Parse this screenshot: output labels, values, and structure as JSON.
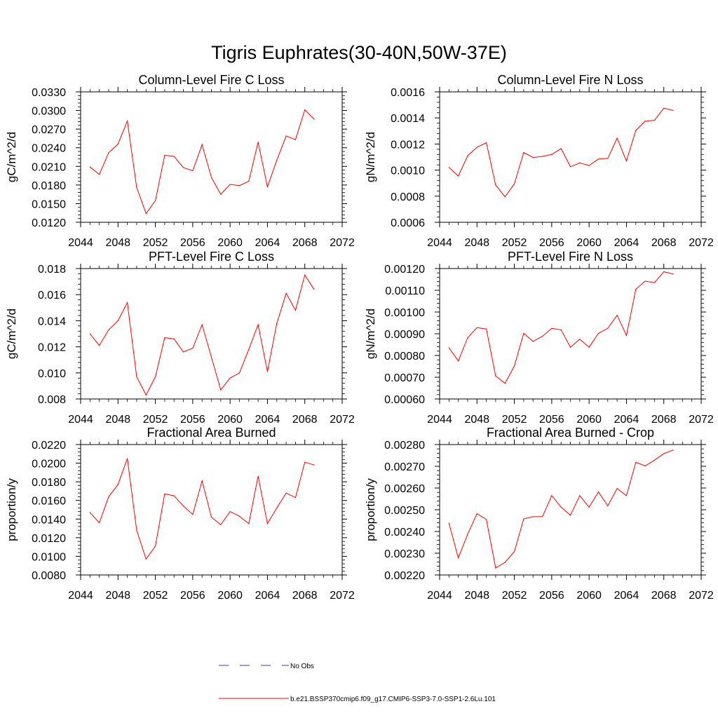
{
  "main_title": "Tigris Euphrates(30-40N,50W-37E)",
  "colors": {
    "model": "#ff0000",
    "obs": "#3a3aa0",
    "axis": "#000000"
  },
  "legend": {
    "obs_label": "No Obs",
    "model_label": "b.e21.BSSP370cmip6.f09_g17.CMIP6-SSP3-7.0-SSP1-2.6Lu.101"
  },
  "chart_data": [
    {
      "type": "line",
      "title": "Column-Level Fire C Loss",
      "xlabel": "",
      "ylabel": "gC/m^2/d",
      "xlim": [
        2044,
        2072
      ],
      "ylim": [
        0.012,
        0.033
      ],
      "x_ticks": [
        2044,
        2048,
        2052,
        2056,
        2060,
        2064,
        2068,
        2072
      ],
      "x_tick_labels": [
        "2044",
        "2048",
        "2052",
        "2056",
        "2060",
        "2064",
        "2068",
        "2072"
      ],
      "y_ticks": [
        0.012,
        0.015,
        0.018,
        0.021,
        0.024,
        0.027,
        0.03,
        0.033
      ],
      "y_tick_labels": [
        "0.0120",
        "0.0150",
        "0.0180",
        "0.0210",
        "0.0240",
        "0.0270",
        "0.0300",
        "0.0330"
      ],
      "grid": false,
      "series": [
        {
          "x": [
            2045,
            2046,
            2047,
            2048,
            2049,
            2050,
            2051,
            2052,
            2053,
            2054,
            2055,
            2056,
            2057,
            2058,
            2059,
            2060,
            2061,
            2062,
            2063,
            2064,
            2065,
            2066,
            2067,
            2068,
            2069
          ],
          "values": [
            0.0209,
            0.0197,
            0.0232,
            0.0246,
            0.0283,
            0.0176,
            0.0134,
            0.0155,
            0.0228,
            0.0226,
            0.0208,
            0.0203,
            0.0245,
            0.0192,
            0.0165,
            0.0181,
            0.0179,
            0.0186,
            0.0249,
            0.0177,
            0.022,
            0.0259,
            0.0253,
            0.0301,
            0.0286
          ]
        }
      ]
    },
    {
      "type": "line",
      "title": "Column-Level Fire N Loss",
      "xlabel": "",
      "ylabel": "gN/m^2/d",
      "xlim": [
        2044,
        2072
      ],
      "ylim": [
        0.0006,
        0.0016
      ],
      "x_ticks": [
        2044,
        2048,
        2052,
        2056,
        2060,
        2064,
        2068,
        2072
      ],
      "x_tick_labels": [
        "2044",
        "2048",
        "2052",
        "2056",
        "2060",
        "2064",
        "2068",
        "2072"
      ],
      "y_ticks": [
        0.0006,
        0.0008,
        0.001,
        0.0012,
        0.0014,
        0.0016
      ],
      "y_tick_labels": [
        "0.0006",
        "0.0008",
        "0.0010",
        "0.0012",
        "0.0014",
        "0.0016"
      ],
      "grid": false,
      "series": [
        {
          "x": [
            2045,
            2046,
            2047,
            2048,
            2049,
            2050,
            2051,
            2052,
            2053,
            2054,
            2055,
            2056,
            2057,
            2058,
            2059,
            2060,
            2061,
            2062,
            2063,
            2064,
            2065,
            2066,
            2067,
            2068,
            2069
          ],
          "values": [
            0.00102,
            0.000955,
            0.00111,
            0.001175,
            0.00121,
            0.000885,
            0.000795,
            0.000895,
            0.001135,
            0.001097,
            0.001105,
            0.00112,
            0.001165,
            0.001025,
            0.001055,
            0.001035,
            0.001085,
            0.00109,
            0.001245,
            0.00107,
            0.001305,
            0.001375,
            0.001382,
            0.001475,
            0.001458
          ]
        }
      ]
    },
    {
      "type": "line",
      "title": "PFT-Level Fire C Loss",
      "xlabel": "",
      "ylabel": "gC/m^2/d",
      "xlim": [
        2044,
        2072
      ],
      "ylim": [
        0.008,
        0.018
      ],
      "x_ticks": [
        2044,
        2048,
        2052,
        2056,
        2060,
        2064,
        2068,
        2072
      ],
      "x_tick_labels": [
        "2044",
        "2048",
        "2052",
        "2056",
        "2060",
        "2064",
        "2068",
        "2072"
      ],
      "y_ticks": [
        0.008,
        0.01,
        0.012,
        0.014,
        0.016,
        0.018
      ],
      "y_tick_labels": [
        "0.008",
        "0.010",
        "0.012",
        "0.014",
        "0.016",
        "0.018"
      ],
      "grid": false,
      "series": [
        {
          "x": [
            2045,
            2046,
            2047,
            2048,
            2049,
            2050,
            2051,
            2052,
            2053,
            2054,
            2055,
            2056,
            2057,
            2058,
            2059,
            2060,
            2061,
            2062,
            2063,
            2064,
            2065,
            2066,
            2067,
            2068,
            2069
          ],
          "values": [
            0.013,
            0.0121,
            0.0133,
            0.014,
            0.0154,
            0.0097,
            0.0083,
            0.0097,
            0.0127,
            0.0126,
            0.0116,
            0.0119,
            0.0137,
            0.0112,
            0.0087,
            0.0096,
            0.01,
            0.0118,
            0.0137,
            0.0101,
            0.0138,
            0.0161,
            0.0148,
            0.0175,
            0.0164
          ]
        }
      ]
    },
    {
      "type": "line",
      "title": "PFT-Level Fire N Loss",
      "xlabel": "",
      "ylabel": "gN/m^2/d",
      "xlim": [
        2044,
        2072
      ],
      "ylim": [
        0.0006,
        0.0012
      ],
      "x_ticks": [
        2044,
        2048,
        2052,
        2056,
        2060,
        2064,
        2068,
        2072
      ],
      "x_tick_labels": [
        "2044",
        "2048",
        "2052",
        "2056",
        "2060",
        "2064",
        "2068",
        "2072"
      ],
      "y_ticks": [
        0.0006,
        0.0007,
        0.0008,
        0.0009,
        0.001,
        0.0011,
        0.0012
      ],
      "y_tick_labels": [
        "0.00060",
        "0.00070",
        "0.00080",
        "0.00090",
        "0.00100",
        "0.00110",
        "0.00120"
      ],
      "grid": false,
      "series": [
        {
          "x": [
            2045,
            2046,
            2047,
            2048,
            2049,
            2050,
            2051,
            2052,
            2053,
            2054,
            2055,
            2056,
            2057,
            2058,
            2059,
            2060,
            2061,
            2062,
            2063,
            2064,
            2065,
            2066,
            2067,
            2068,
            2069
          ],
          "values": [
            0.000835,
            0.000775,
            0.000882,
            0.000928,
            0.000922,
            0.000705,
            0.000672,
            0.000752,
            0.000902,
            0.000865,
            0.000888,
            0.000925,
            0.000918,
            0.000838,
            0.000875,
            0.000838,
            0.000902,
            0.000925,
            0.000985,
            0.000892,
            0.001105,
            0.001142,
            0.001135,
            0.001185,
            0.001175
          ]
        }
      ]
    },
    {
      "type": "line",
      "title": "Fractional Area Burned",
      "xlabel": "",
      "ylabel": "proportion/y",
      "xlim": [
        2044,
        2072
      ],
      "ylim": [
        0.008,
        0.022
      ],
      "x_ticks": [
        2044,
        2048,
        2052,
        2056,
        2060,
        2064,
        2068,
        2072
      ],
      "x_tick_labels": [
        "2044",
        "2048",
        "2052",
        "2056",
        "2060",
        "2064",
        "2068",
        "2072"
      ],
      "y_ticks": [
        0.008,
        0.01,
        0.012,
        0.014,
        0.016,
        0.018,
        0.02,
        0.022
      ],
      "y_tick_labels": [
        "0.0080",
        "0.0100",
        "0.0120",
        "0.0140",
        "0.0160",
        "0.0180",
        "0.0200",
        "0.0220"
      ],
      "grid": false,
      "series": [
        {
          "x": [
            2045,
            2046,
            2047,
            2048,
            2049,
            2050,
            2051,
            2052,
            2053,
            2054,
            2055,
            2056,
            2057,
            2058,
            2059,
            2060,
            2061,
            2062,
            2063,
            2064,
            2065,
            2066,
            2067,
            2068,
            2069
          ],
          "values": [
            0.0147,
            0.0136,
            0.0164,
            0.0177,
            0.0205,
            0.0128,
            0.0097,
            0.0111,
            0.0167,
            0.0165,
            0.0154,
            0.0145,
            0.0181,
            0.0142,
            0.0134,
            0.0148,
            0.0143,
            0.0135,
            0.0186,
            0.0135,
            0.0152,
            0.0168,
            0.0163,
            0.0201,
            0.0198
          ]
        }
      ]
    },
    {
      "type": "line",
      "title": "Fractional Area Burned - Crop",
      "xlabel": "",
      "ylabel": "proportion/y",
      "xlim": [
        2044,
        2072
      ],
      "ylim": [
        0.0022,
        0.0028
      ],
      "x_ticks": [
        2044,
        2048,
        2052,
        2056,
        2060,
        2064,
        2068,
        2072
      ],
      "x_tick_labels": [
        "2044",
        "2048",
        "2052",
        "2056",
        "2060",
        "2064",
        "2068",
        "2072"
      ],
      "y_ticks": [
        0.0022,
        0.0023,
        0.0024,
        0.0025,
        0.0026,
        0.0027,
        0.0028
      ],
      "y_tick_labels": [
        "0.00220",
        "0.00230",
        "0.00240",
        "0.00250",
        "0.00260",
        "0.00270",
        "0.00280"
      ],
      "grid": false,
      "series": [
        {
          "x": [
            2045,
            2046,
            2047,
            2048,
            2049,
            2050,
            2051,
            2052,
            2053,
            2054,
            2055,
            2056,
            2057,
            2058,
            2059,
            2060,
            2061,
            2062,
            2063,
            2064,
            2065,
            2066,
            2067,
            2068,
            2069
          ],
          "values": [
            0.002438,
            0.002278,
            0.002388,
            0.002482,
            0.002455,
            0.002232,
            0.002258,
            0.002308,
            0.002458,
            0.002468,
            0.002468,
            0.002565,
            0.002512,
            0.002475,
            0.002565,
            0.002512,
            0.002582,
            0.002518,
            0.002598,
            0.002565,
            0.002718,
            0.002702,
            0.002728,
            0.002758,
            0.002775
          ]
        }
      ]
    }
  ]
}
